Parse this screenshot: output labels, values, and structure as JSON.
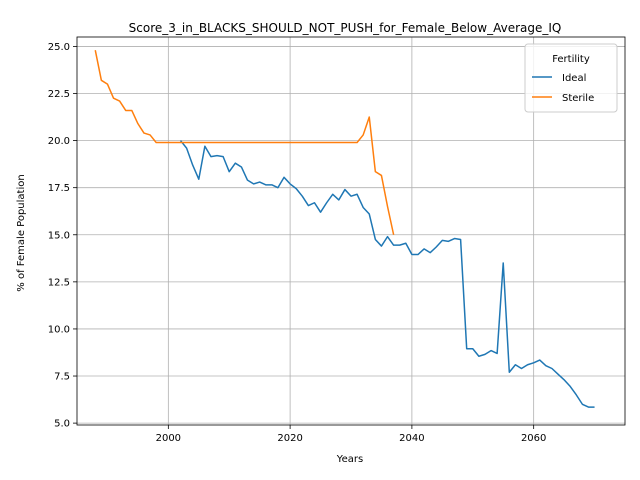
{
  "chart_data": {
    "type": "line",
    "title": "Score_3_in_BLACKS_SHOULD_NOT_PUSH_for_Female_Below_Average_IQ",
    "xlabel": "Years",
    "ylabel": "% of Female Population",
    "xlim": [
      1985,
      2075
    ],
    "ylim": [
      4.9,
      25.5
    ],
    "xticks": [
      2000,
      2020,
      2040,
      2060
    ],
    "yticks": [
      5.0,
      7.5,
      10.0,
      12.5,
      15.0,
      17.5,
      20.0,
      22.5,
      25.0
    ],
    "xtick_labels": [
      "2000",
      "2020",
      "2040",
      "2060"
    ],
    "ytick_labels": [
      "5.0",
      "7.5",
      "10.0",
      "12.5",
      "15.0",
      "17.5",
      "20.0",
      "22.5",
      "25.0"
    ],
    "grid": true,
    "legend": {
      "title": "Fertility",
      "placement": "top-right"
    },
    "series": [
      {
        "name": "Ideal",
        "color": "#1f77b4",
        "x": [
          2002,
          2003,
          2004,
          2005,
          2006,
          2007,
          2008,
          2009,
          2010,
          2011,
          2012,
          2013,
          2014,
          2015,
          2016,
          2017,
          2018,
          2019,
          2020,
          2021,
          2022,
          2023,
          2024,
          2025,
          2026,
          2027,
          2028,
          2029,
          2030,
          2031,
          2032,
          2033,
          2034,
          2035,
          2036,
          2037,
          2038,
          2039,
          2040,
          2041,
          2042,
          2043,
          2044,
          2045,
          2046,
          2047,
          2048,
          2049,
          2050,
          2051,
          2052,
          2053,
          2054,
          2055,
          2056,
          2057,
          2058,
          2059,
          2060,
          2061,
          2062,
          2063,
          2064,
          2065,
          2066,
          2067,
          2068,
          2069,
          2070
        ],
        "y": [
          20.0,
          19.6,
          18.7,
          17.95,
          19.7,
          19.15,
          19.2,
          19.15,
          18.35,
          18.8,
          18.6,
          17.9,
          17.7,
          17.8,
          17.65,
          17.65,
          17.5,
          18.05,
          17.7,
          17.45,
          17.05,
          16.55,
          16.7,
          16.2,
          16.7,
          17.15,
          16.85,
          17.4,
          17.05,
          17.15,
          16.45,
          16.1,
          14.75,
          14.4,
          14.9,
          14.45,
          14.45,
          14.55,
          13.95,
          13.95,
          14.25,
          14.05,
          14.35,
          14.7,
          14.65,
          14.8,
          14.75,
          8.95,
          8.95,
          8.55,
          8.65,
          8.85,
          8.7,
          13.5,
          7.7,
          8.1,
          7.9,
          8.1,
          8.2,
          8.35,
          8.05,
          7.9,
          7.6,
          7.3,
          6.95,
          6.5,
          6.0,
          5.85,
          5.85
        ]
      },
      {
        "name": "Sterile",
        "color": "#ff7f0e",
        "x": [
          1988,
          1989,
          1990,
          1991,
          1992,
          1993,
          1994,
          1995,
          1996,
          1997,
          1998,
          1999,
          2000,
          2001,
          2002,
          2003,
          2004,
          2005,
          2006,
          2007,
          2008,
          2009,
          2010,
          2011,
          2012,
          2013,
          2014,
          2015,
          2016,
          2017,
          2018,
          2019,
          2020,
          2021,
          2022,
          2023,
          2024,
          2025,
          2026,
          2027,
          2028,
          2029,
          2030,
          2031,
          2032,
          2033,
          2034,
          2035,
          2036,
          2037
        ],
        "y": [
          24.8,
          23.2,
          23.0,
          22.25,
          22.1,
          21.6,
          21.6,
          20.9,
          20.4,
          20.3,
          19.9,
          19.9,
          19.9,
          19.9,
          19.9,
          19.9,
          19.9,
          19.9,
          19.9,
          19.9,
          19.9,
          19.9,
          19.9,
          19.9,
          19.9,
          19.9,
          19.9,
          19.9,
          19.9,
          19.9,
          19.9,
          19.9,
          19.9,
          19.9,
          19.9,
          19.9,
          19.9,
          19.9,
          19.9,
          19.9,
          19.9,
          19.9,
          19.9,
          19.9,
          20.3,
          21.25,
          18.35,
          18.15,
          16.5,
          15.0
        ]
      }
    ]
  }
}
